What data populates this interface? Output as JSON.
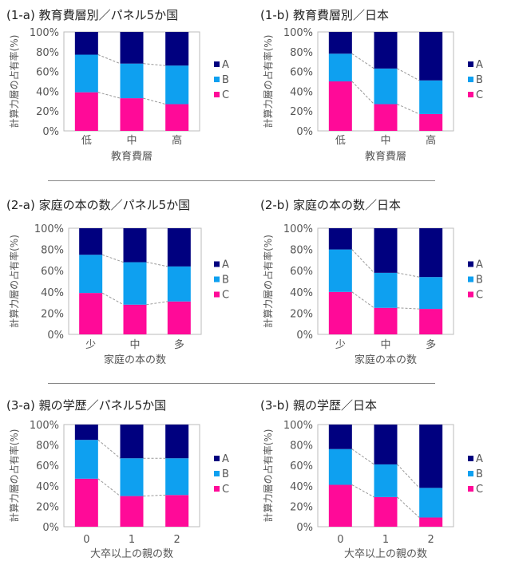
{
  "colors": {
    "A": "#00007f",
    "B": "#0ea0f0",
    "C": "#ff0a98",
    "connector": "#999999",
    "axis": "#bbbbbb",
    "text": "#555555"
  },
  "legend": [
    "A",
    "B",
    "C"
  ],
  "ylabel": "計算力層の占有率(%)",
  "yticks": [
    "0%",
    "20%",
    "40%",
    "60%",
    "80%",
    "100%"
  ],
  "chart_data": [
    {
      "type": "bar",
      "stacked": true,
      "title": "(1-a) 教育費層別／パネル5か国",
      "xlabel": "教育費層",
      "ylabel": "計算力層の占有率(%)",
      "ylim": [
        0,
        100
      ],
      "legend_position": "right",
      "categories": [
        "低",
        "中",
        "高"
      ],
      "series": [
        {
          "name": "C",
          "values": [
            39,
            33,
            27
          ]
        },
        {
          "name": "B",
          "values": [
            38,
            35,
            39
          ]
        },
        {
          "name": "A",
          "values": [
            23,
            32,
            34
          ]
        }
      ]
    },
    {
      "type": "bar",
      "stacked": true,
      "title": "(1-b) 教育費層別／日本",
      "xlabel": "教育費層",
      "ylabel": "計算力層の占有率(%)",
      "ylim": [
        0,
        100
      ],
      "legend_position": "right",
      "categories": [
        "低",
        "中",
        "高"
      ],
      "series": [
        {
          "name": "C",
          "values": [
            50,
            27,
            17
          ]
        },
        {
          "name": "B",
          "values": [
            28,
            36,
            34
          ]
        },
        {
          "name": "A",
          "values": [
            22,
            37,
            49
          ]
        }
      ]
    },
    {
      "type": "bar",
      "stacked": true,
      "title": "(2-a) 家庭の本の数／パネル5か国",
      "xlabel": "家庭の本の数",
      "ylabel": "計算力層の占有率(%)",
      "ylim": [
        0,
        100
      ],
      "legend_position": "right",
      "categories": [
        "少",
        "中",
        "多"
      ],
      "series": [
        {
          "name": "C",
          "values": [
            39,
            28,
            31
          ]
        },
        {
          "name": "B",
          "values": [
            36,
            40,
            33
          ]
        },
        {
          "name": "A",
          "values": [
            25,
            32,
            36
          ]
        }
      ]
    },
    {
      "type": "bar",
      "stacked": true,
      "title": "(2-b) 家庭の本の数／日本",
      "xlabel": "家庭の本の数",
      "ylabel": "計算力層の占有率(%)",
      "ylim": [
        0,
        100
      ],
      "legend_position": "right",
      "categories": [
        "少",
        "中",
        "多"
      ],
      "series": [
        {
          "name": "C",
          "values": [
            40,
            25,
            24
          ]
        },
        {
          "name": "B",
          "values": [
            40,
            33,
            30
          ]
        },
        {
          "name": "A",
          "values": [
            20,
            42,
            46
          ]
        }
      ]
    },
    {
      "type": "bar",
      "stacked": true,
      "title": "(3-a) 親の学歴／パネル5か国",
      "xlabel": "大卒以上の親の数",
      "ylabel": "計算力層の占有率(%)",
      "ylim": [
        0,
        100
      ],
      "legend_position": "right",
      "categories": [
        "0",
        "1",
        "2"
      ],
      "series": [
        {
          "name": "C",
          "values": [
            47,
            30,
            31
          ]
        },
        {
          "name": "B",
          "values": [
            38,
            37,
            36
          ]
        },
        {
          "name": "A",
          "values": [
            15,
            33,
            33
          ]
        }
      ]
    },
    {
      "type": "bar",
      "stacked": true,
      "title": "(3-b) 親の学歴／日本",
      "xlabel": "大卒以上の親の数",
      "ylabel": "計算力層の占有率(%)",
      "ylim": [
        0,
        100
      ],
      "legend_position": "right",
      "categories": [
        "0",
        "1",
        "2"
      ],
      "series": [
        {
          "name": "C",
          "values": [
            41,
            29,
            9
          ]
        },
        {
          "name": "B",
          "values": [
            35,
            32,
            29
          ]
        },
        {
          "name": "A",
          "values": [
            24,
            39,
            62
          ]
        }
      ]
    }
  ]
}
